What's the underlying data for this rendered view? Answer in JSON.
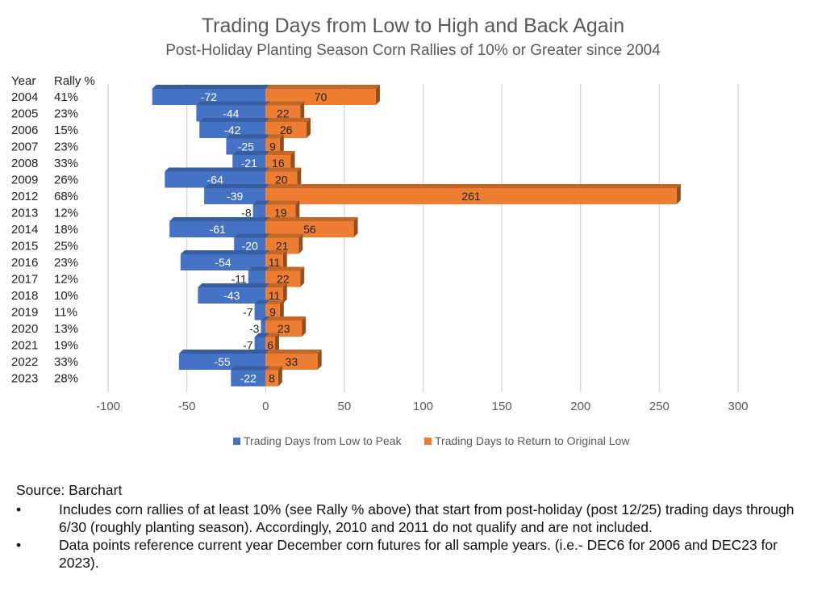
{
  "chart_data": {
    "type": "bar",
    "orientation": "horizontal",
    "title": "Trading Days from Low to High and Back Again",
    "subtitle": "Post-Holiday Planting Season Corn Rallies of 10% or Greater since 2004",
    "row_headers": {
      "year": "Year",
      "rally": "Rally %"
    },
    "categories": [
      "2004",
      "2005",
      "2006",
      "2007",
      "2008",
      "2009",
      "2012",
      "2013",
      "2014",
      "2015",
      "2016",
      "2017",
      "2018",
      "2019",
      "2020",
      "2021",
      "2022",
      "2023"
    ],
    "rally_pct": [
      "41%",
      "23%",
      "15%",
      "23%",
      "33%",
      "26%",
      "68%",
      "12%",
      "18%",
      "25%",
      "23%",
      "12%",
      "10%",
      "11%",
      "13%",
      "19%",
      "33%",
      "28%"
    ],
    "series": [
      {
        "name": "Trading Days from Low to Peak",
        "color": "#4472C4",
        "values": [
          -72,
          -44,
          -42,
          -25,
          -21,
          -64,
          -39,
          -8,
          -61,
          -20,
          -54,
          -11,
          -43,
          -7,
          -3,
          -7,
          -55,
          -22
        ]
      },
      {
        "name": "Trading Days to Return to Original Low",
        "color": "#ED7D31",
        "values": [
          70,
          22,
          26,
          9,
          16,
          20,
          261,
          19,
          56,
          21,
          11,
          22,
          11,
          9,
          23,
          6,
          33,
          8
        ]
      }
    ],
    "xlim": [
      -100,
      300
    ],
    "xticks": [
      -100,
      -50,
      0,
      50,
      100,
      150,
      200,
      250,
      300
    ],
    "grid": true,
    "legend_position": "bottom"
  },
  "notes": {
    "source": "Source: Barchart",
    "bullets": [
      "Includes corn rallies of at least 10% (see Rally % above) that start from post-holiday (post 12/25) trading days through 6/30 (roughly planting season). Accordingly, 2010 and 2011 do not qualify and are not included.",
      "Data points reference current year December corn futures for all sample years. (i.e.- DEC6 for 2006 and DEC23 for 2023)."
    ],
    "bullet_symbol": "•"
  }
}
